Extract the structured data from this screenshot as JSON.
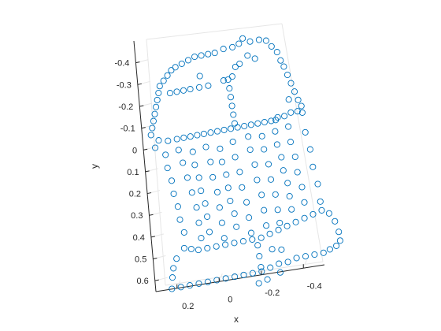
{
  "chart_data": {
    "type": "scatter",
    "projection": "3d-view",
    "xlabel": "x",
    "ylabel": "y",
    "xlim": [
      -0.5,
      0.3
    ],
    "ylim": [
      -0.5,
      0.65
    ],
    "xticks": [
      0.2,
      0,
      -0.2,
      -0.4
    ],
    "xtick_labels": [
      "0.2",
      "0",
      "-0.2",
      "-0.4"
    ],
    "yticks": [
      -0.4,
      -0.3,
      -0.2,
      -0.1,
      0,
      0.1,
      0.2,
      0.3,
      0.4,
      0.5,
      0.6
    ],
    "ytick_labels": [
      "-0.4",
      "-0.3",
      "-0.2",
      "-0.1",
      "0",
      "0.1",
      "0.2",
      "0.3",
      "0.4",
      "0.5",
      "0.6"
    ],
    "grid": true,
    "marker": "open-circle",
    "marker_color": "#0072BD",
    "axis_color": "#262626",
    "grid_color": "#e6e6e6",
    "points": [
      {
        "x": -0.21,
        "y": -0.47
      },
      {
        "x": -0.24,
        "y": -0.45
      },
      {
        "x": -0.28,
        "y": -0.45
      },
      {
        "x": -0.31,
        "y": -0.44
      },
      {
        "x": -0.19,
        "y": -0.45
      },
      {
        "x": -0.16,
        "y": -0.44
      },
      {
        "x": -0.12,
        "y": -0.44
      },
      {
        "x": -0.08,
        "y": -0.43
      },
      {
        "x": -0.05,
        "y": -0.43
      },
      {
        "x": -0.02,
        "y": -0.43
      },
      {
        "x": 0.01,
        "y": -0.43
      },
      {
        "x": 0.04,
        "y": -0.42
      },
      {
        "x": 0.07,
        "y": -0.41
      },
      {
        "x": 0.1,
        "y": -0.4
      },
      {
        "x": 0.12,
        "y": -0.39
      },
      {
        "x": 0.14,
        "y": -0.37
      },
      {
        "x": 0.16,
        "y": -0.35
      },
      {
        "x": 0.18,
        "y": -0.33
      },
      {
        "x": 0.19,
        "y": -0.3
      },
      {
        "x": 0.2,
        "y": -0.27
      },
      {
        "x": 0.21,
        "y": -0.24
      },
      {
        "x": 0.22,
        "y": -0.21
      },
      {
        "x": 0.23,
        "y": -0.18
      },
      {
        "x": 0.24,
        "y": -0.15
      },
      {
        "x": 0.25,
        "y": -0.12
      },
      {
        "x": -0.33,
        "y": -0.41
      },
      {
        "x": -0.35,
        "y": -0.38
      },
      {
        "x": -0.36,
        "y": -0.34
      },
      {
        "x": -0.37,
        "y": -0.31
      },
      {
        "x": -0.38,
        "y": -0.27
      },
      {
        "x": -0.39,
        "y": -0.23
      },
      {
        "x": -0.4,
        "y": -0.19
      },
      {
        "x": -0.41,
        "y": -0.15
      },
      {
        "x": -0.42,
        "y": -0.12
      },
      {
        "x": -0.18,
        "y": -0.36
      },
      {
        "x": -0.16,
        "y": -0.35
      },
      {
        "x": -0.25,
        "y": -0.37
      },
      {
        "x": -0.22,
        "y": -0.39
      },
      {
        "x": 0.0,
        "y": -0.34
      },
      {
        "x": 0.14,
        "y": -0.29
      },
      {
        "x": 0.11,
        "y": -0.29
      },
      {
        "x": 0.08,
        "y": -0.29
      },
      {
        "x": 0.05,
        "y": -0.29
      },
      {
        "x": 0.01,
        "y": -0.29
      },
      {
        "x": -0.03,
        "y": -0.29
      },
      {
        "x": -0.1,
        "y": -0.3
      },
      {
        "x": -0.12,
        "y": -0.3
      },
      {
        "x": -0.14,
        "y": -0.31
      },
      {
        "x": -0.12,
        "y": -0.26
      },
      {
        "x": -0.12,
        "y": -0.22
      },
      {
        "x": -0.12,
        "y": -0.18
      },
      {
        "x": -0.12,
        "y": -0.14
      },
      {
        "x": -0.12,
        "y": -0.1
      },
      {
        "x": -0.37,
        "y": -0.16
      },
      {
        "x": 0.22,
        "y": -0.09
      },
      {
        "x": 0.18,
        "y": -0.08
      },
      {
        "x": 0.14,
        "y": -0.08
      },
      {
        "x": 0.11,
        "y": -0.08
      },
      {
        "x": 0.08,
        "y": -0.08
      },
      {
        "x": 0.05,
        "y": -0.08
      },
      {
        "x": 0.02,
        "y": -0.08
      },
      {
        "x": -0.01,
        "y": -0.08
      },
      {
        "x": -0.04,
        "y": -0.08
      },
      {
        "x": -0.07,
        "y": -0.08
      },
      {
        "x": -0.1,
        "y": -0.08
      },
      {
        "x": -0.13,
        "y": -0.08
      },
      {
        "x": -0.16,
        "y": -0.08
      },
      {
        "x": -0.19,
        "y": -0.08
      },
      {
        "x": -0.22,
        "y": -0.08
      },
      {
        "x": -0.25,
        "y": -0.08
      },
      {
        "x": -0.28,
        "y": -0.08
      },
      {
        "x": -0.31,
        "y": -0.09
      },
      {
        "x": -0.34,
        "y": -0.09
      },
      {
        "x": -0.37,
        "y": -0.1
      },
      {
        "x": -0.4,
        "y": -0.1
      },
      {
        "x": -0.42,
        "y": -0.09
      },
      {
        "x": 0.24,
        "y": -0.06
      },
      {
        "x": -0.3,
        "y": -0.08
      },
      {
        "x": 0.2,
        "y": -0.02
      },
      {
        "x": 0.2,
        "y": 0.04
      },
      {
        "x": 0.19,
        "y": 0.1
      },
      {
        "x": 0.19,
        "y": 0.16
      },
      {
        "x": 0.18,
        "y": 0.22
      },
      {
        "x": 0.18,
        "y": 0.28
      },
      {
        "x": 0.17,
        "y": 0.34
      },
      {
        "x": 0.14,
        "y": -0.03
      },
      {
        "x": 0.13,
        "y": 0.03
      },
      {
        "x": 0.12,
        "y": 0.1
      },
      {
        "x": 0.11,
        "y": 0.17
      },
      {
        "x": 0.1,
        "y": 0.24
      },
      {
        "x": 0.1,
        "y": 0.31
      },
      {
        "x": 0.1,
        "y": 0.38
      },
      {
        "x": 0.08,
        "y": -0.01
      },
      {
        "x": 0.08,
        "y": 0.05
      },
      {
        "x": 0.07,
        "y": 0.11
      },
      {
        "x": 0.07,
        "y": 0.17
      },
      {
        "x": 0.06,
        "y": 0.23
      },
      {
        "x": 0.06,
        "y": 0.29
      },
      {
        "x": 0.06,
        "y": 0.36
      },
      {
        "x": 0.02,
        "y": -0.02
      },
      {
        "x": 0.01,
        "y": 0.05
      },
      {
        "x": 0.01,
        "y": 0.12
      },
      {
        "x": 0.0,
        "y": 0.19
      },
      {
        "x": 0.0,
        "y": 0.26
      },
      {
        "x": 0.0,
        "y": 0.33
      },
      {
        "x": 0.0,
        "y": 0.4
      },
      {
        "x": -0.04,
        "y": 0.0
      },
      {
        "x": -0.04,
        "y": 0.06
      },
      {
        "x": -0.05,
        "y": 0.12
      },
      {
        "x": -0.05,
        "y": 0.18
      },
      {
        "x": -0.05,
        "y": 0.24
      },
      {
        "x": -0.06,
        "y": 0.3
      },
      {
        "x": -0.06,
        "y": 0.36
      },
      {
        "x": -0.1,
        "y": -0.02
      },
      {
        "x": -0.1,
        "y": 0.05
      },
      {
        "x": -0.11,
        "y": 0.12
      },
      {
        "x": -0.11,
        "y": 0.19
      },
      {
        "x": -0.12,
        "y": 0.26
      },
      {
        "x": -0.12,
        "y": 0.33
      },
      {
        "x": -0.12,
        "y": 0.4
      },
      {
        "x": -0.17,
        "y": -0.03
      },
      {
        "x": -0.17,
        "y": 0.03
      },
      {
        "x": -0.18,
        "y": 0.1
      },
      {
        "x": -0.18,
        "y": 0.17
      },
      {
        "x": -0.19,
        "y": 0.24
      },
      {
        "x": -0.19,
        "y": 0.31
      },
      {
        "x": -0.19,
        "y": 0.38
      },
      {
        "x": -0.23,
        "y": -0.02
      },
      {
        "x": -0.23,
        "y": 0.04
      },
      {
        "x": -0.24,
        "y": 0.11
      },
      {
        "x": -0.24,
        "y": 0.18
      },
      {
        "x": -0.25,
        "y": 0.25
      },
      {
        "x": -0.25,
        "y": 0.32
      },
      {
        "x": -0.25,
        "y": 0.38
      },
      {
        "x": -0.29,
        "y": -0.03
      },
      {
        "x": -0.29,
        "y": 0.03
      },
      {
        "x": -0.3,
        "y": 0.09
      },
      {
        "x": -0.3,
        "y": 0.15
      },
      {
        "x": -0.31,
        "y": 0.21
      },
      {
        "x": -0.31,
        "y": 0.27
      },
      {
        "x": -0.31,
        "y": 0.33
      },
      {
        "x": -0.35,
        "y": -0.04
      },
      {
        "x": -0.35,
        "y": 0.03
      },
      {
        "x": -0.36,
        "y": 0.1
      },
      {
        "x": -0.36,
        "y": 0.17
      },
      {
        "x": -0.37,
        "y": 0.24
      },
      {
        "x": -0.37,
        "y": 0.31
      },
      {
        "x": -0.42,
        "y": 0.0
      },
      {
        "x": -0.43,
        "y": 0.08
      },
      {
        "x": -0.43,
        "y": 0.16
      },
      {
        "x": -0.44,
        "y": 0.24
      },
      {
        "x": -0.44,
        "y": 0.32
      },
      {
        "x": 0.18,
        "y": 0.41
      },
      {
        "x": 0.15,
        "y": 0.42
      },
      {
        "x": 0.12,
        "y": 0.43
      },
      {
        "x": 0.08,
        "y": 0.43
      },
      {
        "x": 0.04,
        "y": 0.43
      },
      {
        "x": 0.0,
        "y": 0.43
      },
      {
        "x": -0.04,
        "y": 0.43
      },
      {
        "x": -0.08,
        "y": 0.43
      },
      {
        "x": -0.12,
        "y": 0.43
      },
      {
        "x": -0.16,
        "y": 0.43
      },
      {
        "x": -0.2,
        "y": 0.42
      },
      {
        "x": -0.24,
        "y": 0.41
      },
      {
        "x": -0.28,
        "y": 0.4
      },
      {
        "x": -0.32,
        "y": 0.39
      },
      {
        "x": -0.36,
        "y": 0.38
      },
      {
        "x": -0.4,
        "y": 0.37
      },
      {
        "x": -0.44,
        "y": 0.36
      },
      {
        "x": -0.47,
        "y": 0.38
      },
      {
        "x": -0.49,
        "y": 0.42
      },
      {
        "x": -0.5,
        "y": 0.47
      },
      {
        "x": -0.5,
        "y": 0.51
      },
      {
        "x": -0.48,
        "y": 0.53
      },
      {
        "x": -0.45,
        "y": 0.54
      },
      {
        "x": 0.22,
        "y": 0.45
      },
      {
        "x": 0.24,
        "y": 0.49
      },
      {
        "x": 0.25,
        "y": 0.53
      },
      {
        "x": 0.26,
        "y": 0.58
      },
      {
        "x": 0.22,
        "y": 0.58
      },
      {
        "x": 0.18,
        "y": 0.58
      },
      {
        "x": 0.14,
        "y": 0.58
      },
      {
        "x": 0.1,
        "y": 0.58
      },
      {
        "x": 0.06,
        "y": 0.58
      },
      {
        "x": 0.02,
        "y": 0.58
      },
      {
        "x": -0.02,
        "y": 0.58
      },
      {
        "x": -0.06,
        "y": 0.58
      },
      {
        "x": -0.1,
        "y": 0.58
      },
      {
        "x": -0.14,
        "y": 0.58
      },
      {
        "x": -0.18,
        "y": 0.57
      },
      {
        "x": -0.22,
        "y": 0.56
      },
      {
        "x": -0.26,
        "y": 0.56
      },
      {
        "x": -0.3,
        "y": 0.55
      },
      {
        "x": -0.34,
        "y": 0.55
      },
      {
        "x": -0.38,
        "y": 0.55
      },
      {
        "x": -0.42,
        "y": 0.55
      },
      {
        "x": -0.14,
        "y": 0.46
      },
      {
        "x": -0.14,
        "y": 0.51
      },
      {
        "x": -0.14,
        "y": 0.56
      },
      {
        "x": -0.2,
        "y": 0.49
      },
      {
        "x": -0.24,
        "y": 0.5
      },
      {
        "x": -0.22,
        "y": 0.6
      },
      {
        "x": -0.16,
        "y": 0.62
      },
      {
        "x": -0.12,
        "y": 0.63
      }
    ]
  }
}
